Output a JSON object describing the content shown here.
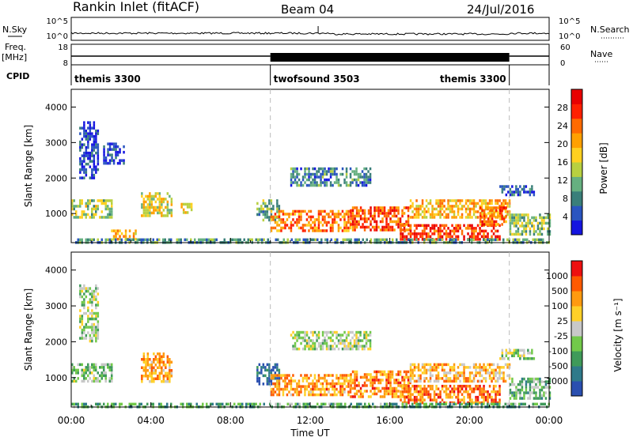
{
  "header": {
    "station": "Rankin Inlet (fitACF)",
    "beam": "Beam 04",
    "date": "24/Jul/2016"
  },
  "noise_panel": {
    "left_label": "N.Sky",
    "left_ticks": [
      "10^5",
      "10^0"
    ],
    "right_label": "N.Search",
    "right_ticks": [
      "10^5",
      "10^0"
    ]
  },
  "freq_panel": {
    "left_label_top": "Freq.",
    "left_label_bottom": "[MHz]",
    "left_ticks": [
      "18",
      "8"
    ],
    "right_label": "Nave",
    "right_ticks": [
      "60",
      "0"
    ]
  },
  "cpid_panel": {
    "label": "CPID",
    "modes": [
      {
        "name": "themis 3300",
        "start_hour": 0,
        "end_hour": 10
      },
      {
        "name": "twofsound 3503",
        "start_hour": 10,
        "end_hour": 22
      },
      {
        "name": "themis 3300",
        "start_hour": 22,
        "end_hour": 24
      }
    ]
  },
  "chart_data": [
    {
      "type": "heatmap",
      "panel": "power",
      "ylabel": "Slant Range [km]",
      "ylim": [
        180,
        4500
      ],
      "yticks": [
        "1000",
        "2000",
        "3000",
        "4000"
      ],
      "xlim": [
        0,
        24
      ],
      "colorbar": {
        "label": "Power [dB]",
        "tick_labels": [
          "4",
          "8",
          "12",
          "16",
          "20",
          "24",
          "28"
        ],
        "colors": [
          "#1515e0",
          "#2a55c0",
          "#3a7f7a",
          "#66b080",
          "#b8d040",
          "#ffd020",
          "#ffa000",
          "#ff6a00",
          "#ff2000",
          "#e80000"
        ]
      },
      "regions": [
        {
          "t0": 0.0,
          "t1": 2.0,
          "r0": 900,
          "r1": 1400,
          "level": 0.45
        },
        {
          "t0": 0.4,
          "t1": 1.3,
          "r0": 2000,
          "r1": 3600,
          "level": 0.1
        },
        {
          "t0": 1.6,
          "t1": 2.6,
          "r0": 2400,
          "r1": 3000,
          "level": 0.1
        },
        {
          "t0": 2.0,
          "t1": 3.2,
          "r0": 300,
          "r1": 550,
          "level": 0.6
        },
        {
          "t0": 3.5,
          "t1": 5.0,
          "r0": 900,
          "r1": 1600,
          "level": 0.5
        },
        {
          "t0": 5.5,
          "t1": 6.0,
          "r0": 1000,
          "r1": 1300,
          "level": 0.55
        },
        {
          "t0": 9.3,
          "t1": 10.4,
          "r0": 800,
          "r1": 1400,
          "level": 0.35
        },
        {
          "t0": 10.0,
          "t1": 14.0,
          "r0": 500,
          "r1": 1100,
          "level": 0.72
        },
        {
          "t0": 11.0,
          "t1": 15.0,
          "r0": 1800,
          "r1": 2300,
          "level": 0.25
        },
        {
          "t0": 14.0,
          "t1": 17.0,
          "r0": 500,
          "r1": 1200,
          "level": 0.8
        },
        {
          "t0": 16.5,
          "t1": 21.5,
          "r0": 300,
          "r1": 700,
          "level": 0.85
        },
        {
          "t0": 17.0,
          "t1": 22.0,
          "r0": 900,
          "r1": 1400,
          "level": 0.6
        },
        {
          "t0": 20.5,
          "t1": 21.8,
          "r0": 700,
          "r1": 1200,
          "level": 0.75
        },
        {
          "t0": 21.5,
          "t1": 23.2,
          "r0": 1500,
          "r1": 1800,
          "level": 0.15
        },
        {
          "t0": 22.0,
          "t1": 24.0,
          "r0": 400,
          "r1": 1000,
          "level": 0.4
        },
        {
          "t0": 0.0,
          "t1": 24.0,
          "r0": 180,
          "r1": 300,
          "level": 0.3
        }
      ]
    },
    {
      "type": "heatmap",
      "panel": "velocity",
      "ylabel": "Slant Range [km]",
      "ylim": [
        180,
        4500
      ],
      "yticks": [
        "1000",
        "2000",
        "3000",
        "4000"
      ],
      "xlim": [
        0,
        24
      ],
      "xticks": [
        "00:00",
        "04:00",
        "08:00",
        "12:00",
        "16:00",
        "20:00",
        "00:00"
      ],
      "xlabel": "Time UT",
      "colorbar": {
        "label": "Velocity [m s⁻¹]",
        "tick_labels": [
          "1000",
          "500",
          "100",
          "25",
          "-25",
          "-100",
          "-500",
          "-1000"
        ],
        "colors": [
          "#2a4fb0",
          "#2f7a8a",
          "#3f9a5a",
          "#72c94a",
          "#c8c8c8",
          "#ffd028",
          "#ff9a10",
          "#ff5a00",
          "#ee1010"
        ]
      },
      "regions": [
        {
          "t0": 0.0,
          "t1": 2.0,
          "r0": 900,
          "r1": 1400,
          "level": 0.4
        },
        {
          "t0": 0.4,
          "t1": 1.3,
          "r0": 2000,
          "r1": 3600,
          "level": 0.45
        },
        {
          "t0": 3.5,
          "t1": 5.0,
          "r0": 900,
          "r1": 1700,
          "level": 0.7
        },
        {
          "t0": 9.3,
          "t1": 10.4,
          "r0": 800,
          "r1": 1400,
          "level": 0.15
        },
        {
          "t0": 10.0,
          "t1": 14.0,
          "r0": 500,
          "r1": 1100,
          "level": 0.72
        },
        {
          "t0": 11.0,
          "t1": 15.0,
          "r0": 1800,
          "r1": 2300,
          "level": 0.45
        },
        {
          "t0": 14.0,
          "t1": 17.0,
          "r0": 500,
          "r1": 1200,
          "level": 0.75
        },
        {
          "t0": 16.5,
          "t1": 21.5,
          "r0": 300,
          "r1": 800,
          "level": 0.8
        },
        {
          "t0": 17.0,
          "t1": 22.0,
          "r0": 900,
          "r1": 1400,
          "level": 0.65
        },
        {
          "t0": 21.5,
          "t1": 23.2,
          "r0": 1500,
          "r1": 1800,
          "level": 0.45
        },
        {
          "t0": 22.0,
          "t1": 24.0,
          "r0": 400,
          "r1": 1000,
          "level": 0.35
        },
        {
          "t0": 0.0,
          "t1": 24.0,
          "r0": 180,
          "r1": 300,
          "level": 0.3
        }
      ]
    }
  ]
}
